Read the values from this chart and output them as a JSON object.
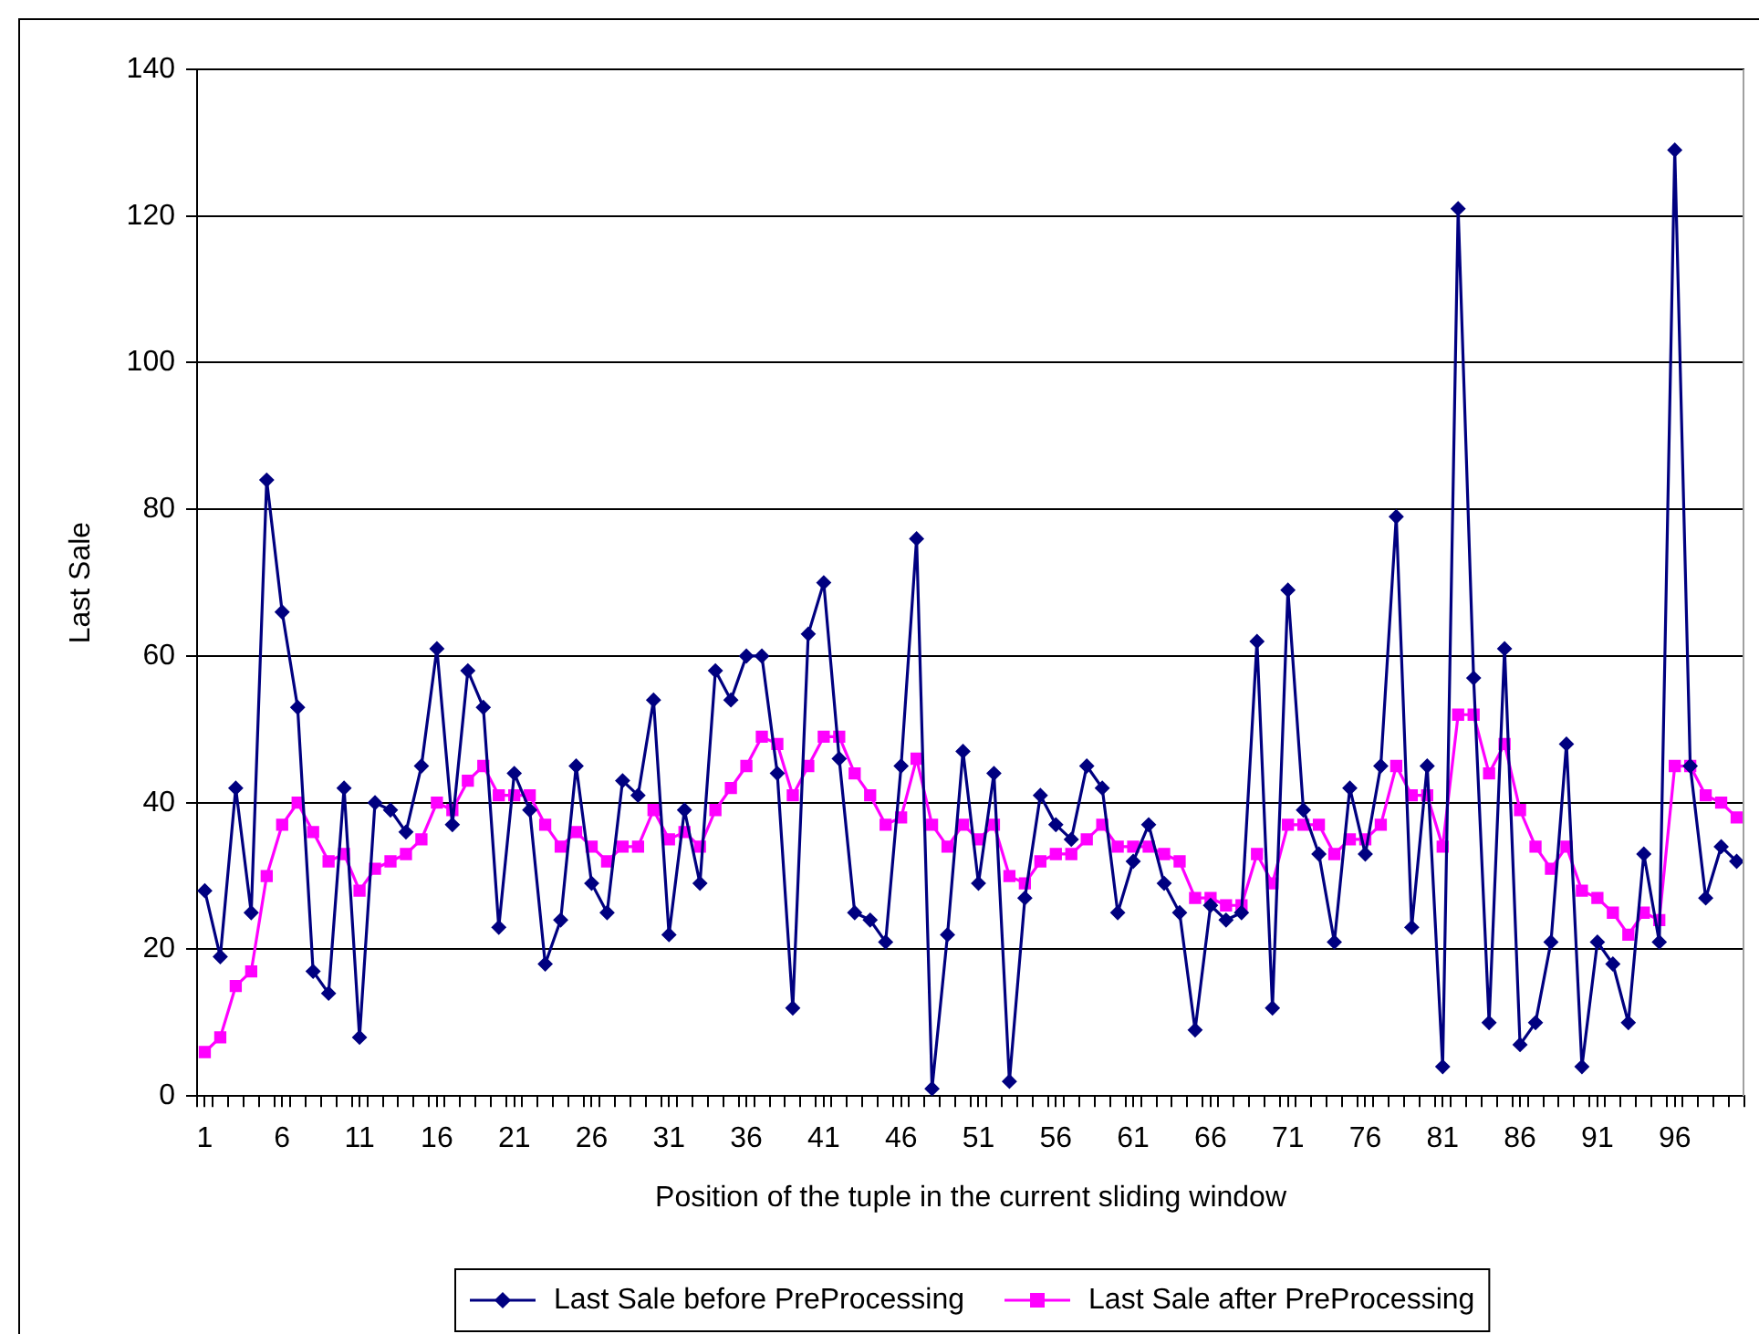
{
  "chart_data": {
    "type": "line",
    "xlabel": "Position of the tuple in the current sliding window",
    "ylabel": "Last Sale",
    "x": [
      1,
      2,
      3,
      4,
      5,
      6,
      7,
      8,
      9,
      10,
      11,
      12,
      13,
      14,
      15,
      16,
      17,
      18,
      19,
      20,
      21,
      22,
      23,
      24,
      25,
      26,
      27,
      28,
      29,
      30,
      31,
      32,
      33,
      34,
      35,
      36,
      37,
      38,
      39,
      40,
      41,
      42,
      43,
      44,
      45,
      46,
      47,
      48,
      49,
      50,
      51,
      52,
      53,
      54,
      55,
      56,
      57,
      58,
      59,
      60,
      61,
      62,
      63,
      64,
      65,
      66,
      67,
      68,
      69,
      70,
      71,
      72,
      73,
      74,
      75,
      76,
      77,
      78,
      79,
      80,
      81,
      82,
      83,
      84,
      85,
      86,
      87,
      88,
      89,
      90,
      91,
      92,
      93,
      94,
      95,
      96,
      97,
      98,
      99,
      100
    ],
    "series": [
      {
        "name": "Last Sale before PreProcessing",
        "color": "#000080",
        "marker": "diamond",
        "values": [
          28,
          19,
          42,
          25,
          84,
          66,
          53,
          17,
          14,
          42,
          8,
          40,
          39,
          36,
          45,
          61,
          37,
          58,
          53,
          23,
          44,
          39,
          18,
          24,
          45,
          29,
          25,
          43,
          41,
          54,
          22,
          39,
          29,
          58,
          54,
          60,
          60,
          44,
          12,
          63,
          70,
          46,
          25,
          24,
          21,
          45,
          76,
          1,
          22,
          47,
          29,
          44,
          2,
          27,
          41,
          37,
          35,
          45,
          42,
          25,
          32,
          37,
          29,
          25,
          9,
          26,
          24,
          25,
          62,
          12,
          69,
          39,
          33,
          21,
          42,
          33,
          45,
          79,
          23,
          45,
          4,
          121,
          57,
          10,
          61,
          7,
          10,
          21,
          48,
          4,
          21,
          18,
          10,
          33,
          21,
          129,
          45,
          27,
          34,
          32
        ]
      },
      {
        "name": "Last Sale after PreProcessing",
        "color": "#ff00ff",
        "marker": "square",
        "values": [
          6,
          8,
          15,
          17,
          30,
          37,
          40,
          36,
          32,
          33,
          28,
          31,
          32,
          33,
          35,
          40,
          39,
          43,
          45,
          41,
          41,
          41,
          37,
          34,
          36,
          34,
          32,
          34,
          34,
          39,
          35,
          36,
          34,
          39,
          42,
          45,
          49,
          48,
          41,
          45,
          49,
          49,
          44,
          41,
          37,
          38,
          46,
          37,
          34,
          37,
          35,
          37,
          30,
          29,
          32,
          33,
          33,
          35,
          37,
          34,
          34,
          34,
          33,
          32,
          27,
          27,
          26,
          26,
          33,
          29,
          37,
          37,
          37,
          33,
          35,
          35,
          37,
          45,
          41,
          41,
          34,
          52,
          52,
          44,
          48,
          39,
          34,
          31,
          34,
          28,
          27,
          25,
          22,
          25,
          24,
          45,
          45,
          41,
          40,
          38
        ]
      }
    ],
    "xlim": [
      0.5,
      100.5
    ],
    "xticks": [
      {
        "value": 0.5,
        "label": null
      },
      1,
      {
        "value": 1.5,
        "label": null
      },
      {
        "value": 2.5,
        "label": null
      },
      {
        "value": 3.5,
        "label": null
      },
      {
        "value": 4.5,
        "label": null
      },
      {
        "value": 5.5,
        "label": null
      },
      6,
      {
        "value": 6.5,
        "label": null
      },
      {
        "value": 7.5,
        "label": null
      },
      {
        "value": 8.5,
        "label": null
      },
      {
        "value": 9.5,
        "label": null
      },
      {
        "value": 10.5,
        "label": null
      },
      11,
      {
        "value": 11.5,
        "label": null
      },
      {
        "value": 12.5,
        "label": null
      },
      {
        "value": 13.5,
        "label": null
      },
      {
        "value": 14.5,
        "label": null
      },
      {
        "value": 15.5,
        "label": null
      },
      16,
      {
        "value": 16.5,
        "label": null
      },
      {
        "value": 17.5,
        "label": null
      },
      {
        "value": 18.5,
        "label": null
      },
      {
        "value": 19.5,
        "label": null
      },
      {
        "value": 20.5,
        "label": null
      },
      21,
      {
        "value": 21.5,
        "label": null
      },
      {
        "value": 22.5,
        "label": null
      },
      {
        "value": 23.5,
        "label": null
      },
      {
        "value": 24.5,
        "label": null
      },
      {
        "value": 25.5,
        "label": null
      },
      26,
      {
        "value": 26.5,
        "label": null
      },
      {
        "value": 27.5,
        "label": null
      },
      {
        "value": 28.5,
        "label": null
      },
      {
        "value": 29.5,
        "label": null
      },
      {
        "value": 30.5,
        "label": null
      },
      31,
      {
        "value": 31.5,
        "label": null
      },
      {
        "value": 32.5,
        "label": null
      },
      {
        "value": 33.5,
        "label": null
      },
      {
        "value": 34.5,
        "label": null
      },
      {
        "value": 35.5,
        "label": null
      },
      36,
      {
        "value": 36.5,
        "label": null
      },
      {
        "value": 37.5,
        "label": null
      },
      {
        "value": 38.5,
        "label": null
      },
      {
        "value": 39.5,
        "label": null
      },
      {
        "value": 40.5,
        "label": null
      },
      41,
      {
        "value": 41.5,
        "label": null
      },
      {
        "value": 42.5,
        "label": null
      },
      {
        "value": 43.5,
        "label": null
      },
      {
        "value": 44.5,
        "label": null
      },
      {
        "value": 45.5,
        "label": null
      },
      46,
      {
        "value": 46.5,
        "label": null
      },
      {
        "value": 47.5,
        "label": null
      },
      {
        "value": 48.5,
        "label": null
      },
      {
        "value": 49.5,
        "label": null
      },
      {
        "value": 50.5,
        "label": null
      },
      51,
      {
        "value": 51.5,
        "label": null
      },
      {
        "value": 52.5,
        "label": null
      },
      {
        "value": 53.5,
        "label": null
      },
      {
        "value": 54.5,
        "label": null
      },
      {
        "value": 55.5,
        "label": null
      },
      56,
      {
        "value": 56.5,
        "label": null
      },
      {
        "value": 57.5,
        "label": null
      },
      {
        "value": 58.5,
        "label": null
      },
      {
        "value": 59.5,
        "label": null
      },
      {
        "value": 60.5,
        "label": null
      },
      61,
      {
        "value": 61.5,
        "label": null
      },
      {
        "value": 62.5,
        "label": null
      },
      {
        "value": 63.5,
        "label": null
      },
      {
        "value": 64.5,
        "label": null
      },
      {
        "value": 65.5,
        "label": null
      },
      66,
      {
        "value": 66.5,
        "label": null
      },
      {
        "value": 67.5,
        "label": null
      },
      {
        "value": 68.5,
        "label": null
      },
      {
        "value": 69.5,
        "label": null
      },
      {
        "value": 70.5,
        "label": null
      },
      71,
      {
        "value": 71.5,
        "label": null
      },
      {
        "value": 72.5,
        "label": null
      },
      {
        "value": 73.5,
        "label": null
      },
      {
        "value": 74.5,
        "label": null
      },
      {
        "value": 75.5,
        "label": null
      },
      76,
      {
        "value": 76.5,
        "label": null
      },
      {
        "value": 77.5,
        "label": null
      },
      {
        "value": 78.5,
        "label": null
      },
      {
        "value": 79.5,
        "label": null
      },
      {
        "value": 80.5,
        "label": null
      },
      81,
      {
        "value": 81.5,
        "label": null
      },
      {
        "value": 82.5,
        "label": null
      },
      {
        "value": 83.5,
        "label": null
      },
      {
        "value": 84.5,
        "label": null
      },
      {
        "value": 85.5,
        "label": null
      },
      86,
      {
        "value": 86.5,
        "label": null
      },
      {
        "value": 87.5,
        "label": null
      },
      {
        "value": 88.5,
        "label": null
      },
      {
        "value": 89.5,
        "label": null
      },
      {
        "value": 90.5,
        "label": null
      },
      91,
      {
        "value": 91.5,
        "label": null
      },
      {
        "value": 92.5,
        "label": null
      },
      {
        "value": 93.5,
        "label": null
      },
      {
        "value": 94.5,
        "label": null
      },
      {
        "value": 95.5,
        "label": null
      },
      96,
      {
        "value": 96.5,
        "label": null
      },
      {
        "value": 97.5,
        "label": null
      },
      {
        "value": 98.5,
        "label": null
      },
      {
        "value": 99.5,
        "label": null
      },
      {
        "value": 100.5,
        "label": null
      }
    ],
    "ylim": [
      0,
      140
    ],
    "yticks": [
      0,
      20,
      40,
      60,
      80,
      100,
      120,
      140
    ],
    "grid": "y",
    "legend": "bottom"
  }
}
